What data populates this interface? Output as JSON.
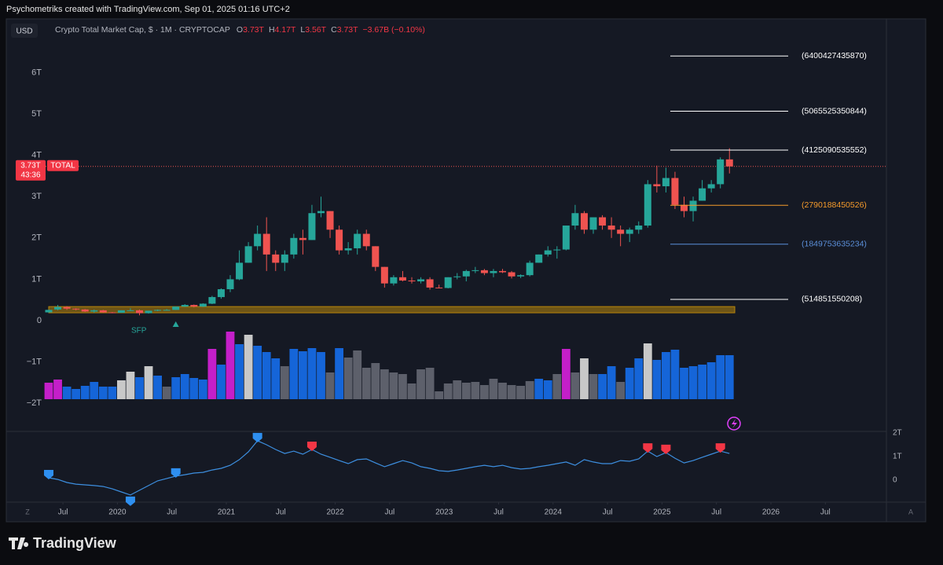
{
  "header": "Psychometriks created with TradingView.com, Sep 01, 2025 01:16 UTC+2",
  "currency_button": "USD",
  "legend": {
    "title": "Crypto Total Market Cap, $ · 1M · CRYPTOCAP",
    "items": [
      {
        "key": "O",
        "text": "3.73T"
      },
      {
        "key": "H",
        "text": "4.17T"
      },
      {
        "key": "L",
        "text": "3.56T"
      },
      {
        "key": "C",
        "text": "3.73T"
      }
    ],
    "change": "−3.67B (−0.10%)"
  },
  "chart_data": {
    "type": "candlestick",
    "x": [
      "2019-05",
      "2019-06",
      "2019-07",
      "2019-08",
      "2019-09",
      "2019-10",
      "2019-11",
      "2019-12",
      "2020-01",
      "2020-02",
      "2020-03",
      "2020-04",
      "2020-05",
      "2020-06",
      "2020-07",
      "2020-08",
      "2020-09",
      "2020-10",
      "2020-11",
      "2020-12",
      "2021-01",
      "2021-02",
      "2021-03",
      "2021-04",
      "2021-05",
      "2021-06",
      "2021-07",
      "2021-08",
      "2021-09",
      "2021-10",
      "2021-11",
      "2021-12",
      "2022-01",
      "2022-02",
      "2022-03",
      "2022-04",
      "2022-05",
      "2022-06",
      "2022-07",
      "2022-08",
      "2022-09",
      "2022-10",
      "2022-11",
      "2022-12",
      "2023-01",
      "2023-02",
      "2023-03",
      "2023-04",
      "2023-05",
      "2023-06",
      "2023-07",
      "2023-08",
      "2023-09",
      "2023-10",
      "2023-11",
      "2023-12",
      "2024-01",
      "2024-02",
      "2024-03",
      "2024-04",
      "2024-05",
      "2024-06",
      "2024-07",
      "2024-08",
      "2024-09",
      "2024-10",
      "2024-11",
      "2024-12",
      "2025-01",
      "2025-02",
      "2025-03",
      "2025-04",
      "2025-05",
      "2025-06",
      "2025-07",
      "2025-08"
    ],
    "candles": [
      [
        0.2,
        0.27,
        0.19,
        0.26
      ],
      [
        0.27,
        0.38,
        0.25,
        0.33
      ],
      [
        0.33,
        0.35,
        0.26,
        0.29
      ],
      [
        0.29,
        0.3,
        0.25,
        0.27
      ],
      [
        0.27,
        0.28,
        0.21,
        0.22
      ],
      [
        0.22,
        0.27,
        0.19,
        0.25
      ],
      [
        0.25,
        0.26,
        0.19,
        0.2
      ],
      [
        0.2,
        0.21,
        0.18,
        0.19
      ],
      [
        0.19,
        0.25,
        0.19,
        0.25
      ],
      [
        0.25,
        0.3,
        0.24,
        0.25
      ],
      [
        0.25,
        0.27,
        0.13,
        0.18
      ],
      [
        0.18,
        0.24,
        0.17,
        0.24
      ],
      [
        0.24,
        0.27,
        0.23,
        0.26
      ],
      [
        0.26,
        0.28,
        0.25,
        0.26
      ],
      [
        0.26,
        0.34,
        0.26,
        0.34
      ],
      [
        0.34,
        0.4,
        0.33,
        0.38
      ],
      [
        0.38,
        0.39,
        0.32,
        0.34
      ],
      [
        0.34,
        0.42,
        0.33,
        0.41
      ],
      [
        0.41,
        0.6,
        0.4,
        0.57
      ],
      [
        0.57,
        0.78,
        0.53,
        0.76
      ],
      [
        0.76,
        1.1,
        0.69,
        1.0
      ],
      [
        1.0,
        1.7,
        0.98,
        1.4
      ],
      [
        1.4,
        1.9,
        1.4,
        1.8
      ],
      [
        1.8,
        2.3,
        1.7,
        2.1
      ],
      [
        2.1,
        2.5,
        1.2,
        1.6
      ],
      [
        1.6,
        1.7,
        1.2,
        1.4
      ],
      [
        1.4,
        1.7,
        1.2,
        1.6
      ],
      [
        1.6,
        2.1,
        1.5,
        2.0
      ],
      [
        2.0,
        2.2,
        1.6,
        1.95
      ],
      [
        1.95,
        2.8,
        1.95,
        2.6
      ],
      [
        2.6,
        3.0,
        2.5,
        2.65
      ],
      [
        2.65,
        2.65,
        2.0,
        2.2
      ],
      [
        2.2,
        2.3,
        1.6,
        1.7
      ],
      [
        1.7,
        1.9,
        1.6,
        1.75
      ],
      [
        1.75,
        2.2,
        1.6,
        2.1
      ],
      [
        2.1,
        2.2,
        1.7,
        1.8
      ],
      [
        1.8,
        1.8,
        1.2,
        1.3
      ],
      [
        1.3,
        1.3,
        0.8,
        0.9
      ],
      [
        0.9,
        1.1,
        0.85,
        1.05
      ],
      [
        1.05,
        1.2,
        0.95,
        0.97
      ],
      [
        0.97,
        1.05,
        0.9,
        0.95
      ],
      [
        0.95,
        1.05,
        0.9,
        1.0
      ],
      [
        1.0,
        1.05,
        0.75,
        0.8
      ],
      [
        0.8,
        0.87,
        0.78,
        0.79
      ],
      [
        0.79,
        1.05,
        0.78,
        1.05
      ],
      [
        1.05,
        1.15,
        1.0,
        1.07
      ],
      [
        1.07,
        1.23,
        0.95,
        1.2
      ],
      [
        1.2,
        1.3,
        1.15,
        1.22
      ],
      [
        1.22,
        1.25,
        1.1,
        1.15
      ],
      [
        1.15,
        1.25,
        1.05,
        1.2
      ],
      [
        1.2,
        1.25,
        1.15,
        1.17
      ],
      [
        1.17,
        1.2,
        1.02,
        1.07
      ],
      [
        1.07,
        1.12,
        1.03,
        1.1
      ],
      [
        1.1,
        1.45,
        1.07,
        1.4
      ],
      [
        1.4,
        1.6,
        1.4,
        1.6
      ],
      [
        1.6,
        1.8,
        1.55,
        1.7
      ],
      [
        1.7,
        1.8,
        1.5,
        1.72
      ],
      [
        1.72,
        2.3,
        1.7,
        2.3
      ],
      [
        2.3,
        2.8,
        2.2,
        2.6
      ],
      [
        2.6,
        2.65,
        2.1,
        2.2
      ],
      [
        2.2,
        2.5,
        2.1,
        2.5
      ],
      [
        2.5,
        2.55,
        2.2,
        2.3
      ],
      [
        2.3,
        2.5,
        2.0,
        2.2
      ],
      [
        2.2,
        2.3,
        1.8,
        2.1
      ],
      [
        2.1,
        2.25,
        1.9,
        2.2
      ],
      [
        2.2,
        2.4,
        2.1,
        2.3
      ],
      [
        2.3,
        3.4,
        2.25,
        3.3
      ],
      [
        3.3,
        3.75,
        3.1,
        3.25
      ],
      [
        3.25,
        3.7,
        3.1,
        3.45
      ],
      [
        3.45,
        3.6,
        2.7,
        2.8
      ],
      [
        2.8,
        3.0,
        2.5,
        2.65
      ],
      [
        2.65,
        3.0,
        2.4,
        2.9
      ],
      [
        2.9,
        3.4,
        2.9,
        3.2
      ],
      [
        3.2,
        3.4,
        3.1,
        3.3
      ],
      [
        3.3,
        3.95,
        3.2,
        3.9
      ],
      [
        3.9,
        4.17,
        3.56,
        3.73
      ]
    ],
    "up_color": "#26a69a",
    "down_color": "#ef5350",
    "ylim": [
      -2.66,
      7.28
    ],
    "yticks": [
      {
        "value": 6,
        "label": "6T"
      },
      {
        "value": 5,
        "label": "5T"
      },
      {
        "value": 4,
        "label": "4T"
      },
      {
        "value": 3,
        "label": "3T"
      },
      {
        "value": 2,
        "label": "2T"
      },
      {
        "value": 1,
        "label": "1T"
      },
      0,
      {
        "value": -1,
        "label": "−1T"
      },
      {
        "value": -2,
        "label": "−2T"
      }
    ],
    "xticks": [
      {
        "value": "2019-07",
        "label": "Jul"
      },
      {
        "value": "2020-01",
        "label": "2020"
      },
      {
        "value": "2020-07",
        "label": "Jul"
      },
      {
        "value": "2021-01",
        "label": "2021"
      },
      {
        "value": "2021-07",
        "label": "Jul"
      },
      {
        "value": "2022-01",
        "label": "2022"
      },
      {
        "value": "2022-07",
        "label": "Jul"
      },
      {
        "value": "2023-01",
        "label": "2023"
      },
      {
        "value": "2023-07",
        "label": "Jul"
      },
      {
        "value": "2024-01",
        "label": "2024"
      },
      {
        "value": "2024-07",
        "label": "Jul"
      },
      {
        "value": "2025-01",
        "label": "2025"
      },
      {
        "value": "2025-07",
        "label": "Jul"
      },
      {
        "value": "2026-01",
        "label": "2026"
      },
      {
        "value": "2026-07",
        "label": "Jul"
      }
    ],
    "volume": [
      21,
      25,
      16,
      13,
      17,
      22,
      16,
      16,
      24,
      35,
      28,
      42,
      30,
      16,
      28,
      32,
      27,
      25,
      64,
      44,
      86,
      70,
      82,
      68,
      60,
      52,
      42,
      64,
      61,
      65,
      60,
      34,
      65,
      53,
      62,
      40,
      46,
      38,
      34,
      32,
      20,
      38,
      40,
      10,
      20,
      24,
      21,
      22,
      18,
      26,
      21,
      18,
      17,
      23,
      26,
      24,
      32,
      64,
      34,
      52,
      32,
      32,
      42,
      22,
      40,
      52,
      71,
      50,
      60,
      63,
      40,
      42,
      44,
      47,
      56,
      56
    ],
    "volume_colors": "mmbbbbbbwwbwbgbbbbmbmbwbbbgbbbbgbgggggggggggggggggggggbbgmgwgbbgbbwbbbbbbbbb",
    "volume_palette": {
      "b": "#1565d8",
      "g": "#5d606b",
      "w": "#c8c8c8",
      "m": "#c41fc9"
    },
    "last_price": {
      "value": 3.73,
      "label": "3.73T"
    },
    "symbol": "TOTAL",
    "countdown": "43:36",
    "zone": {
      "from": 0.19,
      "to": 0.34,
      "color": "#b8860b"
    },
    "levels": [
      {
        "value": 6.40042743587,
        "label": "(6400427435870)",
        "color": "#ffffff"
      },
      {
        "value": 5.065525350844,
        "label": "(5065525350844)",
        "color": "#ffffff"
      },
      {
        "value": 4.125090535552,
        "label": "(4125090535552)",
        "color": "#ffffff"
      },
      {
        "value": 2.790188450526,
        "label": "(2790188450526)",
        "color": "#f59b2b"
      },
      {
        "value": 1.849753635234,
        "label": "(1849753635234)",
        "color": "#5b8fd9"
      },
      {
        "value": 0.514851550208,
        "label": "(514851550208)",
        "color": "#ffffff"
      }
    ],
    "sfp": {
      "label": "SFP",
      "index": 14
    },
    "indicator": {
      "color": "#3d8fe0",
      "ylim": [
        -0.9,
        2.0
      ],
      "yticks": [
        {
          "value": 2,
          "label": "2T"
        },
        {
          "value": 1,
          "label": "1T"
        },
        0
      ],
      "values": [
        0.1,
        0.03,
        -0.1,
        -0.17,
        -0.2,
        -0.23,
        -0.27,
        -0.37,
        -0.5,
        -0.63,
        -0.43,
        -0.23,
        -0.03,
        0.07,
        0.17,
        0.23,
        0.3,
        0.33,
        0.43,
        0.5,
        0.63,
        0.87,
        1.2,
        1.67,
        1.5,
        1.3,
        1.13,
        1.23,
        1.1,
        1.3,
        1.1,
        0.97,
        0.83,
        0.7,
        0.87,
        0.9,
        0.73,
        0.57,
        0.7,
        0.83,
        0.73,
        0.57,
        0.5,
        0.4,
        0.37,
        0.43,
        0.5,
        0.57,
        0.63,
        0.57,
        0.63,
        0.53,
        0.47,
        0.5,
        0.57,
        0.63,
        0.7,
        0.77,
        0.63,
        0.87,
        0.77,
        0.7,
        0.7,
        0.83,
        0.8,
        0.9,
        1.23,
        1.0,
        1.17,
        0.93,
        0.73,
        0.83,
        0.97,
        1.1,
        1.23,
        1.13
      ],
      "bull_signals": [
        0,
        9,
        14,
        23
      ],
      "bear_signals": [
        29,
        66,
        68,
        74
      ]
    }
  },
  "corner_left": "Z",
  "corner_right": "A",
  "brand": "TradingView"
}
